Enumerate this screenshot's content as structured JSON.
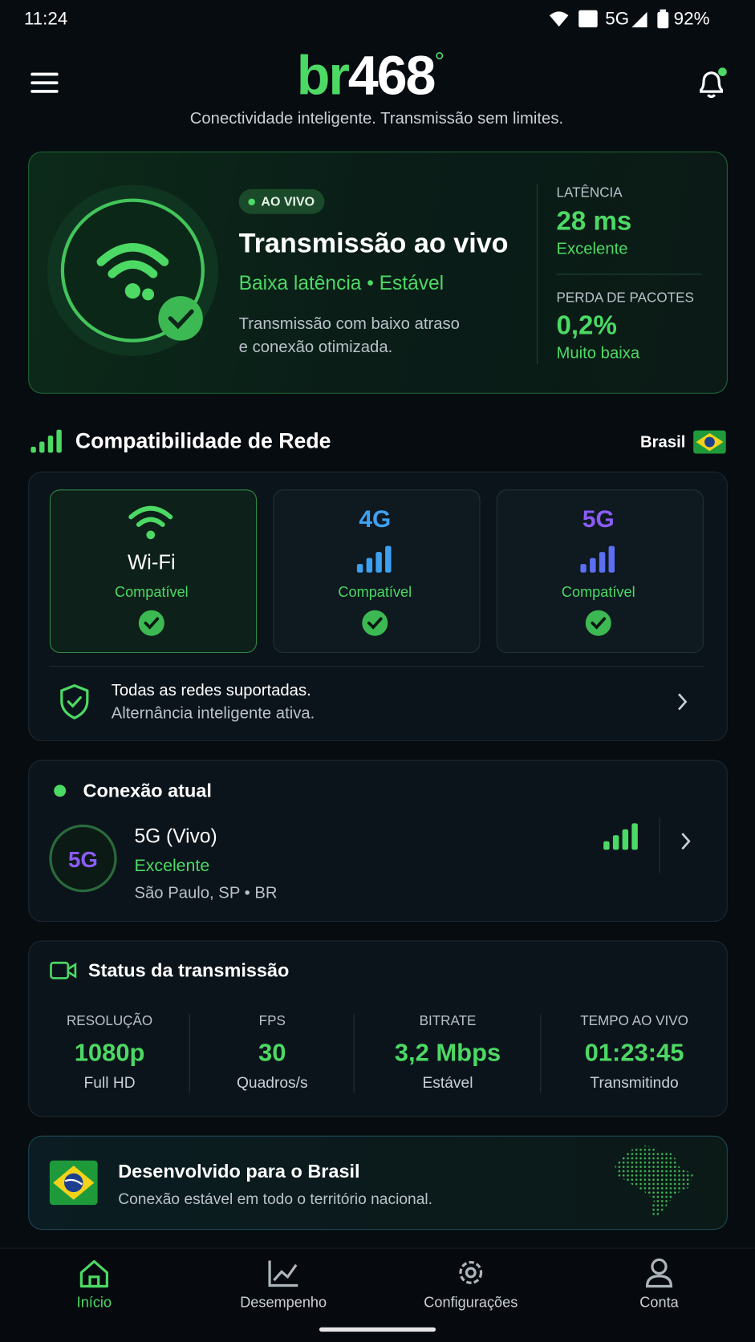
{
  "status_bar": {
    "time": "11:24",
    "network": "5G",
    "battery": "92%"
  },
  "header": {
    "logo_main": "br",
    "logo_accent": "468",
    "logo_mark": "°",
    "tagline": "Conectividade inteligente. Transmissão sem limites."
  },
  "live_card": {
    "badge": "AO VIVO",
    "title": "Transmissão ao vivo",
    "subtitle": "Baixa latência • Estável",
    "description_lines": [
      "Transmissão com baixo atraso",
      "e conexão otimizada."
    ],
    "metrics": [
      {
        "label": "LATÊNCIA",
        "value": "28 ms",
        "note": "Excelente"
      },
      {
        "label": "PERDA DE PACOTES",
        "value": "0,2%",
        "note": "Muito baixa"
      }
    ]
  },
  "compatibility": {
    "title": "Compatibilidade de Rede",
    "region": "Brasil",
    "networks": [
      {
        "name": "Wi-Fi",
        "status": "Compatível"
      },
      {
        "name": "4G",
        "status": "Compatível"
      },
      {
        "name": "5G",
        "status": "Compatível"
      }
    ],
    "summary_lines": [
      "Todas as redes suportadas.",
      "Alternância inteligente ativa."
    ]
  },
  "current_connection": {
    "title": "Conexão atual",
    "badge": "5G",
    "network": "5G (Vivo)",
    "quality": "Excelente",
    "location": "São Paulo, SP • BR"
  },
  "stream_status": {
    "title": "Status da transmissão",
    "stats": [
      {
        "label": "RESOLUÇÃO",
        "value": "1080p",
        "note": "Full HD"
      },
      {
        "label": "FPS",
        "value": "30",
        "note": "Quadros/s"
      },
      {
        "label": "BITRATE",
        "value": "3,2 Mbps",
        "note": "Estável"
      },
      {
        "label": "TEMPO AO VIVO",
        "value": "01:23:45",
        "note": "Transmitindo"
      }
    ]
  },
  "brazil_banner": {
    "title": "Desenvolvido para o Brasil",
    "text": "Conexão estável em todo o território nacional."
  },
  "nav": {
    "items": [
      {
        "label": "Início"
      },
      {
        "label": "Desempenho"
      },
      {
        "label": "Configurações"
      },
      {
        "label": "Conta"
      }
    ]
  }
}
